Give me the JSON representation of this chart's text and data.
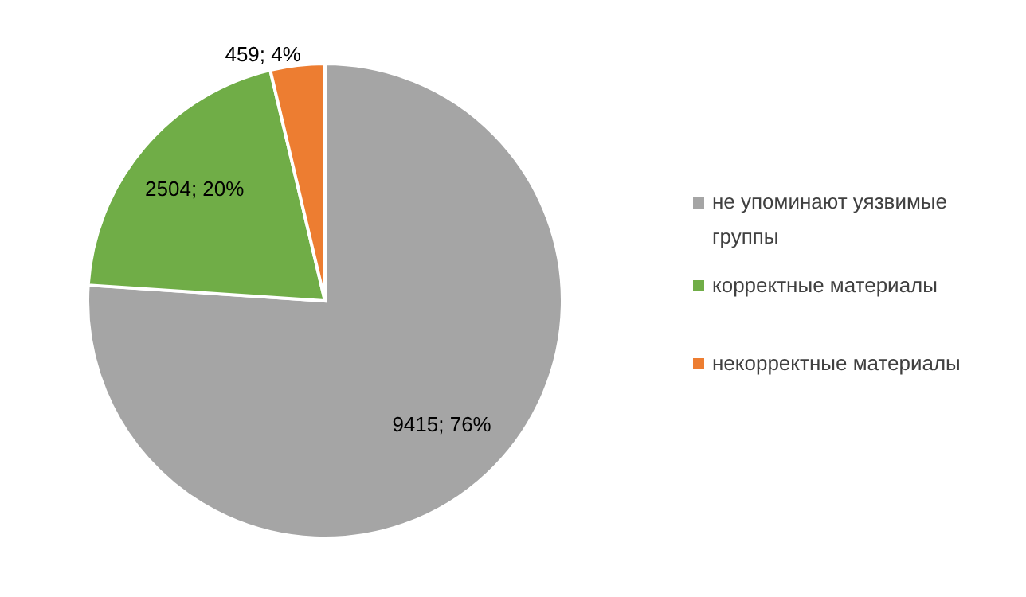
{
  "chart_data": {
    "type": "pie",
    "categories": [
      "не упоминают уязвимые группы",
      "корректные материалы",
      "некорректные материалы"
    ],
    "values": [
      9415,
      2504,
      459
    ],
    "colors": [
      "#a5a5a5",
      "#70ad47",
      "#ed7d31"
    ],
    "value_labels": [
      "9415; 76%",
      "2504; 20%",
      "459; 4%"
    ],
    "legend": "right"
  }
}
